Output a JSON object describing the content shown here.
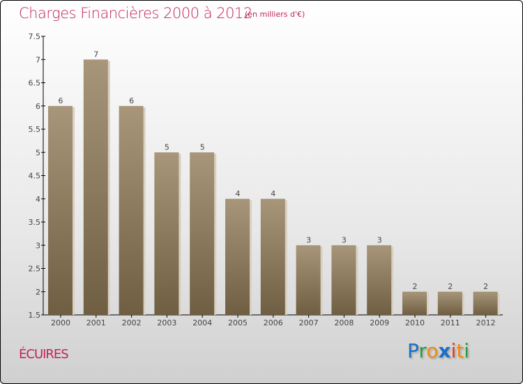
{
  "chart_data": {
    "type": "bar",
    "title": "Charges Financières 2000 à 2012",
    "subtitle": "(en milliers d'€)",
    "categories": [
      "2000",
      "2001",
      "2002",
      "2003",
      "2004",
      "2005",
      "2006",
      "2007",
      "2008",
      "2009",
      "2010",
      "2011",
      "2012"
    ],
    "values": [
      6,
      7,
      6,
      5,
      5,
      4,
      4,
      3,
      3,
      3,
      2,
      2,
      2
    ],
    "data_labels": [
      "6",
      "7",
      "6",
      "5",
      "5",
      "4",
      "4",
      "3",
      "3",
      "3",
      "2",
      "2",
      "2"
    ],
    "ylim": [
      1.5,
      7.5
    ],
    "yticks": [
      "1.5",
      "2",
      "2.5",
      "3",
      "3.5",
      "4",
      "4.5",
      "5",
      "5.5",
      "6",
      "6.5",
      "7",
      "7.5"
    ],
    "xlabel": "",
    "ylabel": "",
    "bar_color": "#8e7b5c"
  },
  "commune": "ÉCUIRES",
  "logo": {
    "letters": [
      "P",
      "r",
      "o",
      "x",
      "i",
      "t",
      "i"
    ],
    "colors": [
      "#1a6fc4",
      "#2a9a3a",
      "#f08a10",
      "#1a6fc4",
      "#e03a20",
      "#f08a10",
      "#2a9a3a"
    ]
  }
}
